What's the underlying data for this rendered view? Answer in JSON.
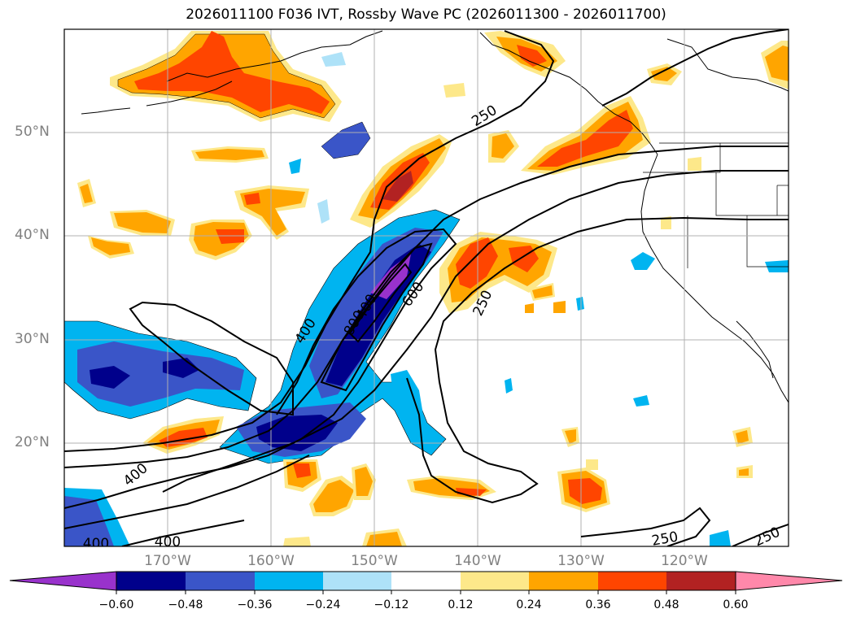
{
  "title": "2026011100 F036 IVT, Rossby Wave PC (2026011300 - 2026011700)",
  "latitude_labels": [
    "50°N",
    "40°N",
    "30°N",
    "20°N"
  ],
  "longitude_labels": [
    "170°W",
    "160°W",
    "150°W",
    "140°W",
    "130°W",
    "120°W"
  ],
  "contour_labels": [
    "250",
    "250",
    "250",
    "250",
    "400",
    "400",
    "400",
    "400",
    "400",
    "600",
    "800"
  ],
  "colorbar": {
    "ticks": [
      "−0.60",
      "−0.48",
      "−0.36",
      "−0.24",
      "−0.12",
      "0.12",
      "0.24",
      "0.36",
      "0.48",
      "0.60"
    ],
    "colors": [
      "#9932cc",
      "#00008b",
      "#3a55c8",
      "#00b4f0",
      "#aee2f8",
      "#ffffff",
      "#fde88a",
      "#ffa500",
      "#ff4500",
      "#b22222",
      "#ff88aa"
    ]
  }
}
